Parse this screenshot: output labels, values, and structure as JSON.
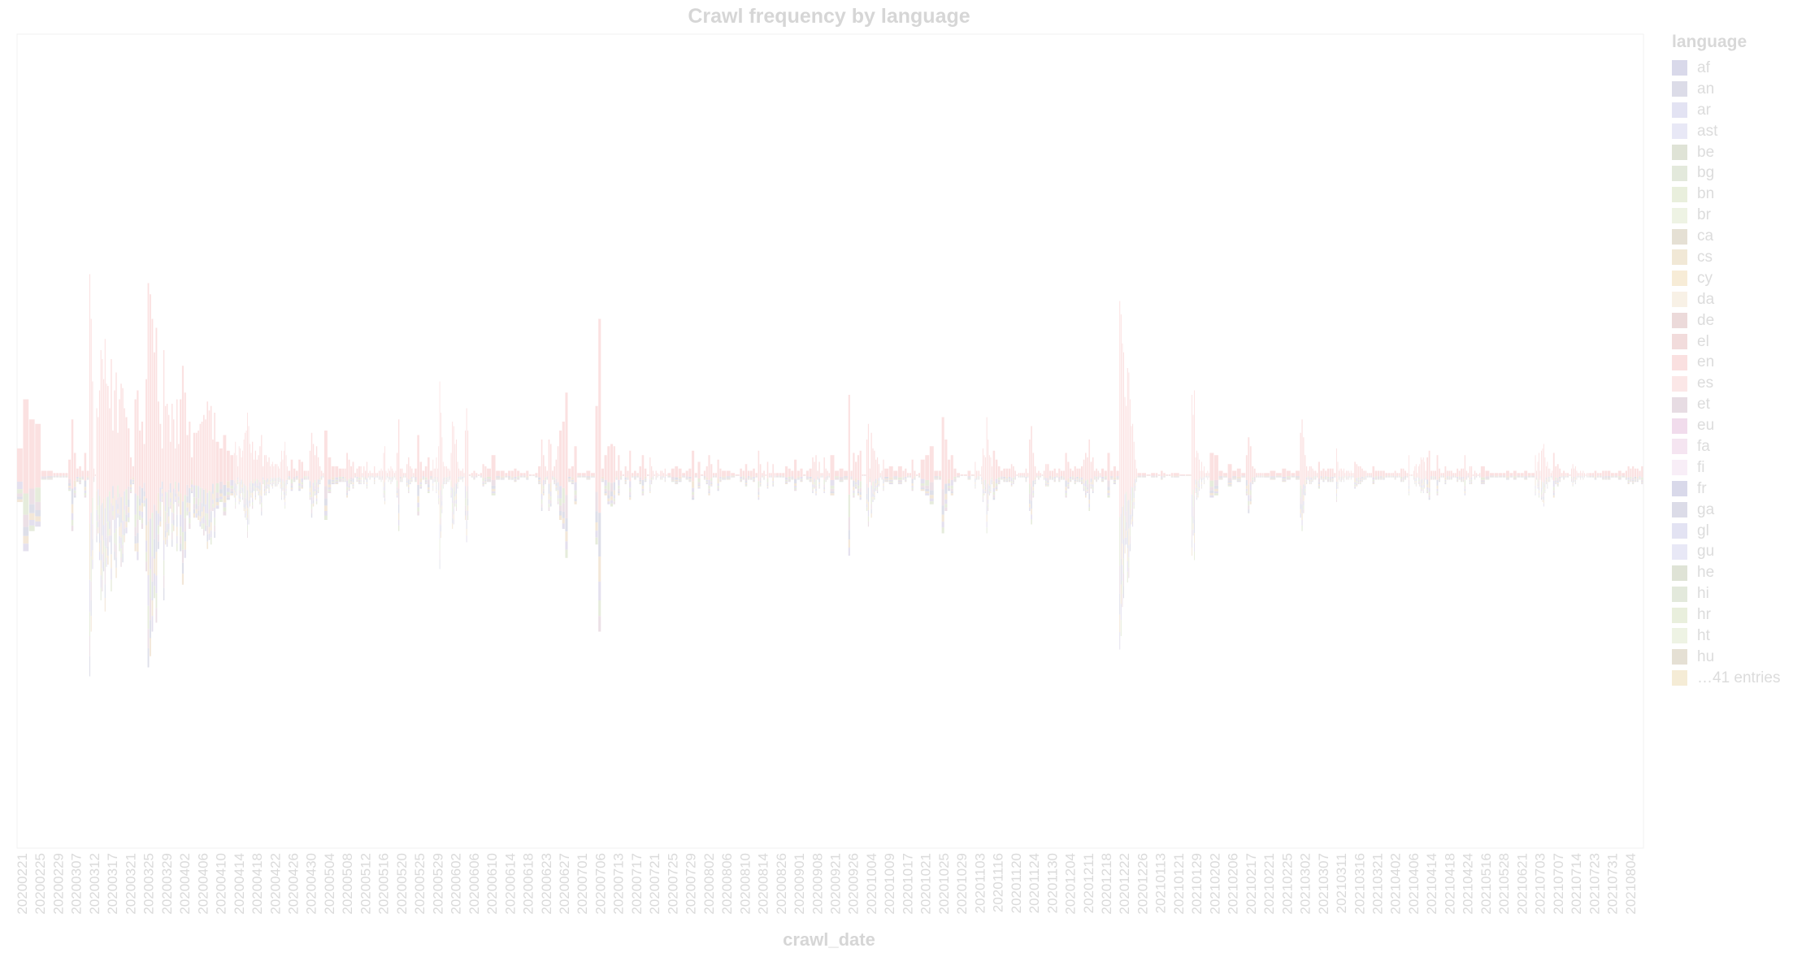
{
  "chart_data": {
    "type": "bar",
    "layout": "streamgraph-stacked-bar",
    "title": "Crawl frequency by language",
    "xlabel": "crawl_date",
    "ylabel": "",
    "grid": false,
    "legend_title": "language",
    "legend_position": "right",
    "legend_entries": [
      "af",
      "an",
      "ar",
      "ast",
      "be",
      "bg",
      "bn",
      "br",
      "ca",
      "cs",
      "cy",
      "da",
      "de",
      "el",
      "en",
      "es",
      "et",
      "eu",
      "fa",
      "fi",
      "fr",
      "ga",
      "gl",
      "gu",
      "he",
      "hi",
      "hr",
      "ht",
      "hu"
    ],
    "legend_more": "…41 entries",
    "x_tick_labels": [
      "20200221",
      "20200225",
      "20200229",
      "20200307",
      "20200312",
      "20200317",
      "20200321",
      "20200325",
      "20200329",
      "20200402",
      "20200406",
      "20200410",
      "20200414",
      "20200418",
      "20200422",
      "20200426",
      "20200430",
      "20200504",
      "20200508",
      "20200512",
      "20200516",
      "20200520",
      "20200525",
      "20200529",
      "20200602",
      "20200606",
      "20200610",
      "20200614",
      "20200618",
      "20200623",
      "20200627",
      "20200701",
      "20200706",
      "20200713",
      "20200717",
      "20200721",
      "20200725",
      "20200729",
      "20200802",
      "20200806",
      "20200810",
      "20200814",
      "20200826",
      "20200901",
      "20200908",
      "20200921",
      "20200926",
      "20201004",
      "20201009",
      "20201017",
      "20201021",
      "20201025",
      "20201029",
      "20201103",
      "20201116",
      "20201120",
      "20201124",
      "20201130",
      "20201204",
      "20201211",
      "20201218",
      "20201222",
      "20201226",
      "20210113",
      "20210121",
      "20210129",
      "20210202",
      "20210206",
      "20210217",
      "20210221",
      "20210225",
      "20210302",
      "20210307",
      "20210311",
      "20210316",
      "20210321",
      "20210402",
      "20210406",
      "20210414",
      "20210418",
      "20210424",
      "20210516",
      "20210528",
      "20210621",
      "20210703",
      "20210707",
      "20210714",
      "20210723",
      "20210731",
      "20210804"
    ],
    "bar_counts": [
      3,
      3,
      6,
      7,
      13,
      11,
      8,
      9,
      11,
      8,
      10,
      5,
      15,
      12,
      16,
      7,
      11,
      5,
      9,
      12,
      15,
      11,
      7,
      16,
      14,
      8,
      4,
      6,
      6,
      10,
      6,
      4,
      6,
      8,
      7,
      12,
      5,
      6,
      8,
      4,
      7,
      10,
      6,
      6,
      11,
      4,
      8,
      12,
      4,
      8,
      4,
      6,
      5,
      14,
      7,
      10,
      10,
      8,
      8,
      10,
      6,
      14,
      4,
      7,
      3,
      15,
      4,
      4,
      9,
      3,
      4,
      12,
      8,
      15,
      10,
      7,
      9,
      15,
      9,
      9,
      11,
      4,
      5,
      5,
      15,
      9,
      14,
      7,
      5,
      8
    ],
    "heights": [
      [
        120,
        340,
        250
      ],
      [
        230,
        20,
        20
      ],
      [
        10,
        10,
        10,
        10,
        10,
        70
      ],
      [
        250,
        100,
        30,
        40,
        20,
        100,
        20
      ],
      [
        900,
        700,
        420,
        30,
        0,
        300,
        260,
        380,
        560,
        520,
        430,
        610,
        410
      ],
      [
        400,
        300,
        520,
        200,
        380,
        460,
        190,
        340,
        410,
        390,
        300
      ],
      [
        260,
        210,
        80,
        40,
        340,
        380,
        200,
        240
      ],
      [
        140,
        430,
        860,
        810,
        700,
        550,
        660,
        330,
        230
      ],
      [
        120,
        560,
        310,
        320,
        270,
        150,
        320,
        250,
        120,
        340,
        140
      ],
      [
        340,
        490,
        370,
        180,
        240,
        80,
        190,
        190
      ],
      [
        200,
        230,
        240,
        270,
        250,
        330,
        290,
        310,
        160,
        280
      ],
      [
        150,
        120,
        180,
        110,
        90
      ],
      [
        100,
        150,
        90,
        40,
        130,
        120,
        80,
        110,
        160,
        190,
        200,
        280,
        220,
        140,
        100
      ],
      [
        150,
        70,
        110,
        70,
        90,
        130,
        180,
        40,
        90,
        90,
        60,
        80
      ],
      [
        40,
        50,
        60,
        40,
        50,
        50,
        50,
        40,
        30,
        60,
        110,
        70,
        110,
        150,
        90,
        40
      ],
      [
        20,
        70,
        30,
        20,
        70,
        60,
        20
      ],
      [
        20,
        20,
        110,
        190,
        140,
        90,
        130,
        80,
        40,
        20,
        10
      ],
      [
        200,
        80,
        40,
        40,
        30
      ],
      [
        30,
        30,
        100,
        70,
        40,
        60,
        10,
        30,
        40
      ],
      [
        40,
        10,
        40,
        20,
        60,
        10,
        20,
        10,
        10,
        40,
        10,
        10
      ],
      [
        20,
        20,
        30,
        20,
        100,
        130,
        20,
        10,
        30,
        20,
        40,
        30,
        20,
        10,
        20
      ],
      [
        100,
        250,
        30,
        30,
        10,
        10,
        50,
        80,
        40,
        30,
        10
      ],
      [
        30,
        180,
        60,
        20,
        40,
        80,
        20
      ],
      [
        70,
        30,
        30,
        80,
        30,
        130,
        420,
        280,
        170,
        60,
        40,
        40,
        40,
        30,
        30,
        20
      ],
      [
        100,
        240,
        220,
        140,
        160,
        60,
        30,
        20,
        20,
        30,
        10,
        200,
        300,
        200
      ],
      [
        0,
        10,
        20,
        10,
        0,
        10,
        50,
        40
      ],
      [
        30,
        90,
        20,
        20
      ],
      [
        10,
        20,
        20,
        30,
        20,
        10
      ],
      [
        10,
        20,
        0,
        0,
        10,
        40
      ],
      [
        160,
        90,
        40,
        20,
        160,
        140,
        20,
        40,
        70,
        130
      ],
      [
        200,
        240,
        370,
        30,
        40,
        130
      ],
      [
        10,
        10,
        20,
        10
      ],
      [
        310,
        700,
        30,
        90,
        130,
        140
      ],
      [
        130,
        20,
        90,
        20,
        0,
        40,
        20,
        110
      ],
      [
        10,
        20,
        10,
        40,
        90,
        30,
        0
      ],
      [
        80,
        40,
        20,
        0,
        20,
        10,
        0,
        20,
        20,
        10,
        30,
        0
      ],
      [
        10,
        30,
        40,
        30,
        10
      ],
      [
        20,
        30,
        110,
        10,
        60,
        0
      ],
      [
        20,
        40,
        90,
        50,
        10,
        10,
        70,
        30
      ],
      [
        20,
        20,
        10,
        0
      ],
      [
        30,
        20,
        50,
        20,
        20,
        30,
        10
      ],
      [
        110,
        50,
        10,
        20,
        0,
        60,
        10,
        10,
        50,
        10
      ],
      [
        10,
        10,
        10,
        40,
        30,
        20
      ],
      [
        70,
        20,
        30,
        0,
        20,
        30
      ],
      [
        80,
        60,
        90,
        20,
        60,
        10,
        10,
        80,
        30,
        20,
        10
      ],
      [
        90,
        20,
        30,
        20
      ],
      [
        360,
        20,
        100,
        60,
        90,
        110,
        0,
        0
      ],
      [
        160,
        230,
        30,
        190,
        120,
        110,
        70,
        80,
        50,
        10,
        20,
        70
      ],
      [
        30,
        40,
        20,
        40
      ],
      [
        20,
        30,
        10,
        10,
        70,
        20,
        0,
        10
      ],
      [
        70,
        90,
        130,
        20
      ],
      [
        20,
        260,
        160,
        70,
        90,
        30
      ],
      [
        10,
        0,
        0,
        20,
        0
      ],
      [
        60,
        20,
        20,
        20,
        0,
        40,
        120,
        90,
        80,
        260,
        160,
        90,
        80,
        40
      ],
      [
        110,
        70,
        40,
        20,
        30,
        30,
        30
      ],
      [
        50,
        40,
        20,
        0,
        10,
        10,
        10,
        10,
        30,
        10
      ],
      [
        160,
        220,
        100,
        40,
        10,
        20,
        10,
        0,
        20,
        50
      ],
      [
        50,
        20,
        20,
        30,
        10,
        30,
        20,
        20
      ],
      [
        100,
        60,
        30,
        20,
        40,
        30,
        30,
        40
      ],
      [
        70,
        100,
        80,
        160,
        60,
        80,
        20,
        30,
        20,
        10
      ],
      [
        30,
        20,
        100,
        20,
        40,
        20
      ],
      [
        780,
        720,
        590,
        550,
        350,
        310,
        480,
        460,
        340,
        220,
        230,
        150,
        70,
        30
      ],
      [
        10,
        10,
        0,
        10
      ],
      [
        10,
        0,
        20,
        10,
        0,
        0,
        10
      ],
      [
        10,
        0,
        0
      ],
      [
        360,
        270,
        380,
        80,
        110,
        100,
        70,
        20,
        60,
        20,
        40,
        10,
        10,
        20,
        10
      ],
      [
        100,
        90,
        20,
        10
      ],
      [
        50,
        20,
        30,
        10
      ],
      [
        90,
        170,
        130,
        40,
        30,
        10,
        10,
        10,
        10
      ],
      [
        10,
        20,
        10
      ],
      [
        30,
        20,
        10,
        20
      ],
      [
        190,
        250,
        170,
        90,
        40,
        20,
        40,
        40,
        30,
        20,
        20,
        10
      ],
      [
        60,
        20,
        30,
        20,
        30,
        30,
        30,
        10
      ],
      [
        120,
        60,
        20,
        30,
        30,
        20,
        30,
        10,
        20,
        20,
        20,
        10,
        20,
        10,
        10
      ],
      [
        60,
        50,
        40,
        40,
        30,
        20,
        20,
        10,
        10,
        10
      ],
      [
        40,
        20,
        20,
        20,
        20,
        10,
        10
      ],
      [
        10,
        10,
        20,
        10,
        10,
        30,
        30,
        20,
        10
      ],
      [
        90,
        0,
        0,
        0,
        20,
        40,
        50,
        10,
        40,
        50,
        80,
        70,
        80,
        60,
        20
      ],
      [
        80,
        110,
        20,
        20,
        20,
        90,
        30,
        10,
        10
      ],
      [
        40,
        20,
        20,
        20,
        10,
        10,
        30,
        20,
        30
      ],
      [
        30,
        90,
        20,
        10,
        40,
        40,
        0,
        20,
        10,
        0,
        10
      ],
      [
        40,
        20,
        10,
        10
      ],
      [
        10,
        10,
        20,
        10,
        20
      ],
      [
        10,
        10,
        20,
        10,
        10
      ],
      [
        90,
        20,
        60,
        100,
        20,
        110,
        120,
        140,
        80,
        40,
        60,
        30,
        30,
        10,
        20
      ],
      [
        100,
        40,
        50,
        30,
        10,
        20,
        10,
        10,
        0
      ],
      [
        30,
        50,
        30,
        40,
        20,
        10,
        10,
        20,
        10,
        20,
        10,
        0,
        10,
        10
      ],
      [
        10,
        10,
        20,
        10,
        10,
        20,
        20
      ],
      [
        20,
        10,
        10,
        20,
        10
      ],
      [
        20,
        40,
        30,
        40,
        30,
        30,
        20,
        40
      ]
    ]
  }
}
